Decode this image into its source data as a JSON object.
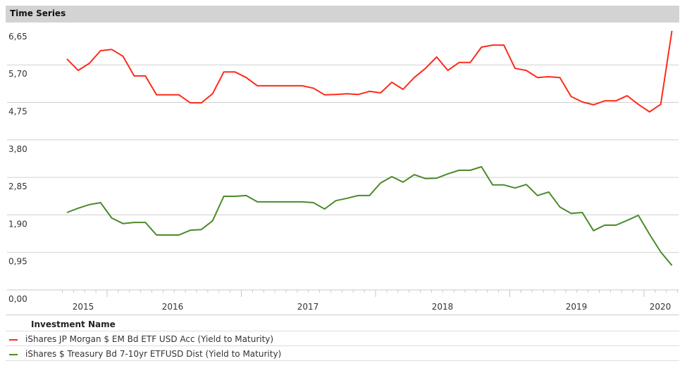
{
  "panel_title": "Time Series",
  "chart_data": {
    "type": "line",
    "title": "Time Series",
    "xlabel": "",
    "ylabel": "",
    "ylim": [
      0,
      6.65
    ],
    "yticks": [
      "0,00",
      "0,95",
      "1,90",
      "2,85",
      "3,80",
      "4,75",
      "5,70",
      "6,65"
    ],
    "ytick_values": [
      0,
      0.95,
      1.9,
      2.85,
      3.8,
      4.75,
      5.7,
      6.65
    ],
    "xtick_labels": [
      "2015",
      "2016",
      "2017",
      "2018",
      "2019",
      "2020"
    ],
    "grid": true,
    "legend_placement": "bottom",
    "legend_title": "Investment Name",
    "x": [
      "2015-09",
      "2015-10",
      "2015-11",
      "2015-12",
      "2016-01",
      "2016-02",
      "2016-03",
      "2016-04",
      "2016-05",
      "2016-06",
      "2016-07",
      "2016-08",
      "2016-09",
      "2016-10",
      "2016-11",
      "2016-12",
      "2017-01",
      "2017-02",
      "2017-03",
      "2017-04",
      "2017-05",
      "2017-06",
      "2017-07",
      "2017-08",
      "2017-09",
      "2017-10",
      "2017-11",
      "2017-12",
      "2018-01",
      "2018-02",
      "2018-03",
      "2018-04",
      "2018-05",
      "2018-06",
      "2018-07",
      "2018-08",
      "2018-09",
      "2018-10",
      "2018-11",
      "2018-12",
      "2019-01",
      "2019-02",
      "2019-03",
      "2019-04",
      "2019-05",
      "2019-06",
      "2019-07",
      "2019-08",
      "2019-09",
      "2019-10",
      "2019-11",
      "2019-12",
      "2020-01",
      "2020-02",
      "2020-03"
    ],
    "series": [
      {
        "name": "iShares JP Morgan $ EM Bd ETF USD Acc (Yield to Maturity)",
        "color": "#ff2a1a",
        "values": [
          5.85,
          5.56,
          5.74,
          6.06,
          6.09,
          5.92,
          5.42,
          5.42,
          4.94,
          4.94,
          4.94,
          4.74,
          4.74,
          4.97,
          5.52,
          5.52,
          5.38,
          5.17,
          5.17,
          5.17,
          5.17,
          5.17,
          5.11,
          4.94,
          4.95,
          4.97,
          4.95,
          5.03,
          4.99,
          5.26,
          5.08,
          5.38,
          5.61,
          5.9,
          5.56,
          5.76,
          5.76,
          6.15,
          6.2,
          6.2,
          5.61,
          5.56,
          5.38,
          5.4,
          5.38,
          4.9,
          4.76,
          4.69,
          4.79,
          4.79,
          4.92,
          4.7,
          4.51,
          4.7,
          6.56
        ]
      },
      {
        "name": "iShares $ Treasury Bd 7-10yr ETFUSD Dist (Yield to Maturity)",
        "color": "#4a8a2a",
        "values": [
          1.96,
          2.07,
          2.16,
          2.21,
          1.82,
          1.68,
          1.71,
          1.71,
          1.39,
          1.39,
          1.39,
          1.51,
          1.53,
          1.75,
          2.37,
          2.37,
          2.39,
          2.23,
          2.23,
          2.23,
          2.23,
          2.23,
          2.21,
          2.05,
          2.26,
          2.32,
          2.39,
          2.39,
          2.71,
          2.87,
          2.73,
          2.92,
          2.82,
          2.83,
          2.94,
          3.03,
          3.03,
          3.12,
          2.66,
          2.66,
          2.58,
          2.67,
          2.39,
          2.48,
          2.1,
          1.94,
          1.96,
          1.5,
          1.64,
          1.64,
          1.76,
          1.89,
          1.41,
          0.96,
          0.62
        ]
      }
    ]
  }
}
